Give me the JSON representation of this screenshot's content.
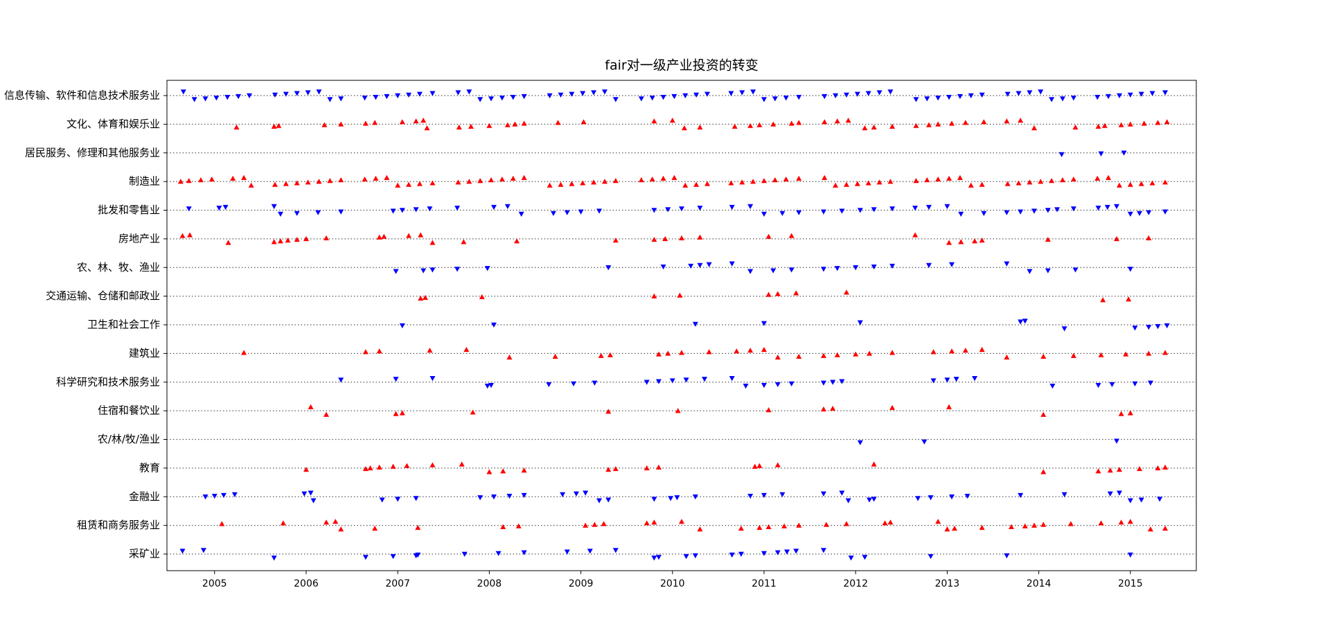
{
  "chart_data": {
    "type": "scatter",
    "title": "fair对一级产业投资的转变",
    "categories": [
      "信息传输、软件和信息技术服务业",
      "文化、体育和娱乐业",
      "居民服务、修理和其他服务业",
      "制造业",
      "批发和零售业",
      "房地产业",
      "农、林、牧、渔业",
      "交通运输、仓储和邮政业",
      "卫生和社会工作",
      "建筑业",
      "科学研究和技术服务业",
      "住宿和餐饮业",
      "农/林/牧/渔业",
      "教育",
      "金融业",
      "租赁和商务服务业",
      "采矿业"
    ],
    "colors": [
      "#0000ff",
      "#ff0000",
      "#0000ff",
      "#ff0000",
      "#0000ff",
      "#ff0000",
      "#0000ff",
      "#ff0000",
      "#0000ff",
      "#ff0000",
      "#0000ff",
      "#ff0000",
      "#0000ff",
      "#ff0000",
      "#0000ff",
      "#ff0000",
      "#0000ff"
    ],
    "markers": [
      "v",
      "^",
      "v",
      "^",
      "v",
      "^",
      "v",
      "^",
      "v",
      "^",
      "v",
      "^",
      "v",
      "^",
      "v",
      "^",
      "v"
    ],
    "points": [
      [
        2004.66,
        2004.78,
        2004.9,
        2005.02,
        2005.14,
        2005.26,
        2005.38,
        2005.66,
        2005.78,
        2005.9,
        2006.02,
        2006.14,
        2006.26,
        2006.38,
        2006.64,
        2006.76,
        2006.88,
        2007.0,
        2007.12,
        2007.24,
        2007.38,
        2007.66,
        2007.78,
        2007.9,
        2008.02,
        2008.14,
        2008.26,
        2008.38,
        2008.66,
        2008.78,
        2008.9,
        2009.02,
        2009.14,
        2009.26,
        2009.38,
        2009.66,
        2009.78,
        2009.9,
        2010.02,
        2010.14,
        2010.26,
        2010.38,
        2010.64,
        2010.76,
        2010.88,
        2011.0,
        2011.12,
        2011.24,
        2011.38,
        2011.66,
        2011.78,
        2011.9,
        2012.02,
        2012.14,
        2012.26,
        2012.38,
        2012.66,
        2012.78,
        2012.9,
        2013.02,
        2013.14,
        2013.26,
        2013.38,
        2013.66,
        2013.78,
        2013.9,
        2014.02,
        2014.14,
        2014.26,
        2014.38,
        2014.64,
        2014.76,
        2014.88,
        2015.0,
        2015.12,
        2015.24,
        2015.38
      ],
      [
        2005.24,
        2005.65,
        2005.7,
        2006.2,
        2006.38,
        2006.65,
        2006.75,
        2007.05,
        2007.2,
        2007.28,
        2007.32,
        2007.67,
        2007.8,
        2008.0,
        2008.2,
        2008.28,
        2008.38,
        2008.75,
        2009.03,
        2009.8,
        2010.0,
        2010.13,
        2010.3,
        2010.68,
        2010.85,
        2010.95,
        2011.1,
        2011.3,
        2011.38,
        2011.66,
        2011.8,
        2011.92,
        2012.1,
        2012.2,
        2012.4,
        2012.66,
        2012.8,
        2012.9,
        2013.05,
        2013.2,
        2013.4,
        2013.65,
        2013.8,
        2013.95,
        2014.4,
        2014.65,
        2014.72,
        2014.9,
        2015.0,
        2015.15,
        2015.3,
        2015.4
      ],
      [
        2014.25,
        2014.68,
        2014.93
      ],
      [
        2004.63,
        2004.72,
        2004.85,
        2004.97,
        2005.2,
        2005.32,
        2005.4,
        2005.66,
        2005.78,
        2005.9,
        2006.02,
        2006.14,
        2006.26,
        2006.38,
        2006.64,
        2006.76,
        2006.88,
        2007.0,
        2007.12,
        2007.24,
        2007.38,
        2007.66,
        2007.78,
        2007.9,
        2008.02,
        2008.14,
        2008.26,
        2008.38,
        2008.66,
        2008.78,
        2008.9,
        2009.02,
        2009.14,
        2009.26,
        2009.38,
        2009.66,
        2009.78,
        2009.9,
        2010.02,
        2010.14,
        2010.26,
        2010.38,
        2010.64,
        2010.76,
        2010.88,
        2011.0,
        2011.12,
        2011.24,
        2011.38,
        2011.66,
        2011.78,
        2011.9,
        2012.02,
        2012.14,
        2012.26,
        2012.38,
        2012.66,
        2012.78,
        2012.9,
        2013.02,
        2013.14,
        2013.26,
        2013.38,
        2013.66,
        2013.78,
        2013.9,
        2014.02,
        2014.14,
        2014.26,
        2014.38,
        2014.64,
        2014.76,
        2014.88,
        2015.0,
        2015.12,
        2015.24,
        2015.38
      ],
      [
        2004.72,
        2005.05,
        2005.12,
        2005.65,
        2005.72,
        2005.9,
        2006.13,
        2006.38,
        2006.95,
        2007.05,
        2007.2,
        2007.35,
        2007.65,
        2008.05,
        2008.2,
        2008.35,
        2008.7,
        2008.85,
        2009.0,
        2009.2,
        2009.8,
        2009.95,
        2010.1,
        2010.3,
        2010.65,
        2010.85,
        2011.0,
        2011.2,
        2011.38,
        2011.65,
        2011.85,
        2012.05,
        2012.2,
        2012.4,
        2012.65,
        2012.8,
        2013.0,
        2013.15,
        2013.4,
        2013.65,
        2013.8,
        2013.95,
        2014.1,
        2014.2,
        2014.38,
        2014.65,
        2014.75,
        2014.85,
        2015.0,
        2015.1,
        2015.2,
        2015.38
      ],
      [
        2004.65,
        2004.73,
        2005.15,
        2005.65,
        2005.72,
        2005.8,
        2005.9,
        2006.0,
        2006.22,
        2006.8,
        2006.85,
        2007.12,
        2007.25,
        2007.38,
        2007.72,
        2008.3,
        2009.38,
        2009.8,
        2009.92,
        2010.1,
        2010.3,
        2011.05,
        2011.3,
        2012.65,
        2013.02,
        2013.15,
        2013.3,
        2013.38,
        2014.1,
        2014.85,
        2015.2
      ],
      [
        2006.98,
        2007.28,
        2007.38,
        2007.65,
        2007.98,
        2009.3,
        2009.9,
        2010.2,
        2010.3,
        2010.4,
        2010.65,
        2010.85,
        2011.1,
        2011.3,
        2011.65,
        2011.8,
        2012.0,
        2012.2,
        2012.4,
        2012.8,
        2013.05,
        2013.65,
        2013.9,
        2014.1,
        2014.4,
        2015.0
      ],
      [
        2007.25,
        2007.3,
        2007.92,
        2009.8,
        2010.08,
        2011.05,
        2011.15,
        2011.35,
        2011.9,
        2014.7,
        2014.98
      ],
      [
        2007.05,
        2008.05,
        2010.25,
        2011.0,
        2012.05,
        2013.8,
        2013.85,
        2014.28,
        2015.05,
        2015.2,
        2015.3,
        2015.4
      ],
      [
        2005.32,
        2006.65,
        2006.8,
        2007.35,
        2007.75,
        2008.22,
        2008.72,
        2009.22,
        2009.32,
        2009.85,
        2009.95,
        2010.1,
        2010.4,
        2010.7,
        2010.85,
        2011.0,
        2011.15,
        2011.38,
        2011.65,
        2011.8,
        2012.0,
        2012.15,
        2012.4,
        2012.85,
        2013.05,
        2013.2,
        2013.38,
        2013.65,
        2014.05,
        2014.38,
        2014.68,
        2014.95,
        2015.2,
        2015.38
      ],
      [
        2006.38,
        2006.98,
        2007.38,
        2007.98,
        2008.02,
        2008.65,
        2008.92,
        2009.15,
        2009.72,
        2009.85,
        2010.0,
        2010.15,
        2010.35,
        2010.65,
        2010.8,
        2011.0,
        2011.15,
        2011.3,
        2011.65,
        2011.75,
        2011.85,
        2012.85,
        2013.0,
        2013.1,
        2013.3,
        2014.15,
        2014.65,
        2014.8,
        2015.05,
        2015.22
      ],
      [
        2006.05,
        2006.22,
        2006.98,
        2007.05,
        2007.82,
        2009.3,
        2010.06,
        2011.05,
        2011.65,
        2011.75,
        2012.4,
        2013.02,
        2014.05,
        2014.9,
        2015.0
      ],
      [
        2012.05,
        2012.75,
        2014.85
      ],
      [
        2006.0,
        2006.65,
        2006.7,
        2006.8,
        2006.95,
        2007.1,
        2007.38,
        2007.7,
        2008.0,
        2008.15,
        2008.38,
        2009.3,
        2009.38,
        2009.72,
        2009.85,
        2010.9,
        2010.95,
        2011.15,
        2012.2,
        2014.05,
        2014.65,
        2014.78,
        2014.88,
        2015.1,
        2015.3,
        2015.38
      ],
      [
        2004.9,
        2005.0,
        2005.1,
        2005.22,
        2005.98,
        2006.05,
        2006.08,
        2006.83,
        2007.0,
        2007.2,
        2007.9,
        2008.05,
        2008.22,
        2008.38,
        2008.8,
        2008.95,
        2009.05,
        2009.2,
        2009.3,
        2009.8,
        2009.98,
        2010.05,
        2010.25,
        2010.85,
        2011.0,
        2011.2,
        2011.65,
        2011.85,
        2011.92,
        2012.15,
        2012.2,
        2012.68,
        2012.82,
        2013.05,
        2013.22,
        2013.8,
        2014.28,
        2014.78,
        2014.88,
        2015.0,
        2015.12,
        2015.32
      ],
      [
        2005.08,
        2005.75,
        2006.22,
        2006.32,
        2006.38,
        2006.75,
        2007.22,
        2008.15,
        2008.32,
        2009.05,
        2009.15,
        2009.25,
        2009.72,
        2009.8,
        2010.1,
        2010.3,
        2010.75,
        2010.95,
        2011.05,
        2011.22,
        2011.38,
        2011.68,
        2011.9,
        2012.32,
        2012.38,
        2012.9,
        2013.0,
        2013.08,
        2013.38,
        2013.7,
        2013.85,
        2013.95,
        2014.05,
        2014.35,
        2014.68,
        2014.9,
        2015.0,
        2015.22,
        2015.38
      ],
      [
        2004.65,
        2004.88,
        2005.65,
        2006.65,
        2006.95,
        2007.2,
        2007.22,
        2007.73,
        2008.1,
        2008.38,
        2008.85,
        2009.1,
        2009.38,
        2009.8,
        2009.85,
        2010.15,
        2010.25,
        2010.65,
        2010.75,
        2011.0,
        2011.15,
        2011.25,
        2011.35,
        2011.65,
        2011.95,
        2012.1,
        2012.82,
        2013.65,
        2015.0
      ]
    ],
    "xlim": [
      2004.48,
      2015.72
    ],
    "xticks": [
      2005,
      2006,
      2007,
      2008,
      2009,
      2010,
      2011,
      2012,
      2013,
      2014,
      2015
    ],
    "grid": true
  }
}
